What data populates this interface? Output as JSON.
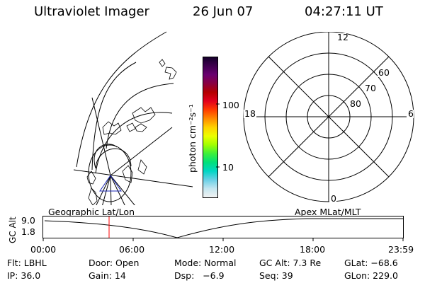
{
  "header": {
    "title": "Ultraviolet Imager",
    "date": "26 Jun 07",
    "time": "04:27:11 UT"
  },
  "colorbar": {
    "unit_label": "photon cm⁻²s⁻¹",
    "ticks": [
      "100",
      "10"
    ],
    "colors": [
      "#15002a",
      "#400050",
      "#6a0070",
      "#8a0040",
      "#b40000",
      "#e2001e",
      "#ff3c00",
      "#ff8a00",
      "#ffd200",
      "#ecff00",
      "#a0ff00",
      "#3cf03c",
      "#00e07a",
      "#00d6c4",
      "#6ad0e6",
      "#c4e6f0",
      "#f2f2f2"
    ]
  },
  "polar_plot": {
    "lat_labels": [
      "80",
      "70",
      "60"
    ],
    "mlt_labels": {
      "top": "12",
      "bottom": "0",
      "left": "18",
      "right": "6"
    }
  },
  "timeline": {
    "top_left_label": "Geographic Lat/Lon",
    "top_right_label": "Apex MLat/MLT",
    "y_axis_label": "GC Alt",
    "y_ticks": [
      "9.0",
      "1.8"
    ],
    "x_ticks": [
      "00:00",
      "06:00",
      "12:00",
      "18:00",
      "23:59"
    ],
    "marker_color": "#ff0000"
  },
  "status": {
    "flt": "Flt: LBHL",
    "door": "Door: Open",
    "mode": "Mode: Normal",
    "gc_alt": "GC Alt: 7.3 Re",
    "glat": "GLat: −68.6",
    "ip": "IP: 36.0",
    "gain": "Gain: 14",
    "dsp": "Dsp:   −6.9",
    "seq": "Seq: 39",
    "glon": "GLon: 229.0"
  }
}
